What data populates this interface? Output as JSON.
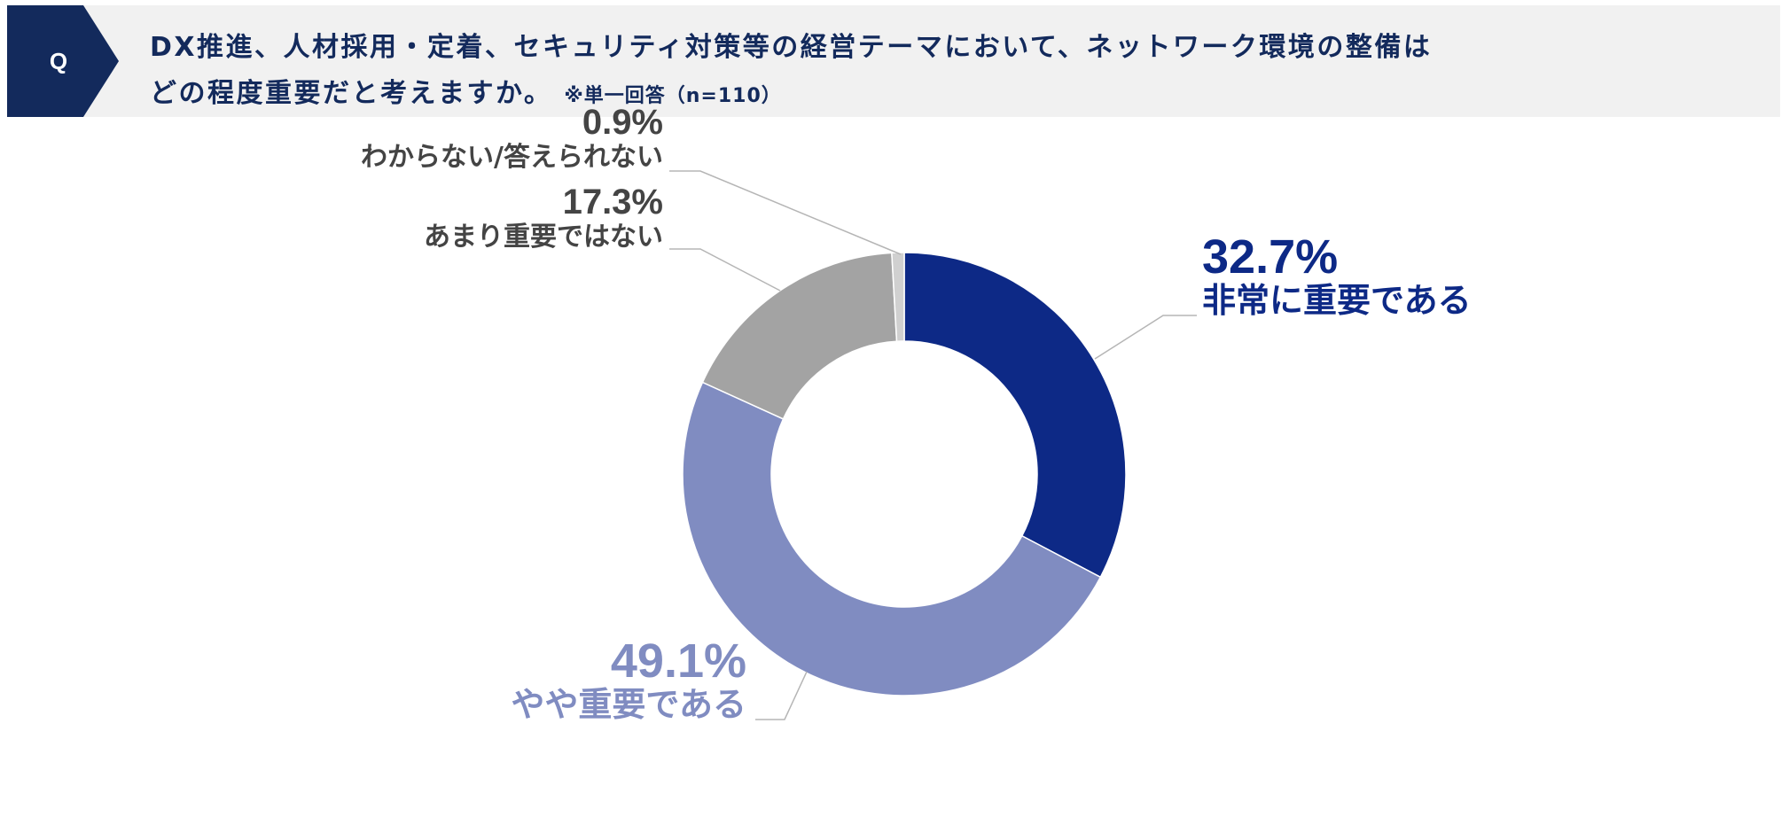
{
  "header": {
    "badge": "Q",
    "question_line1": "DX推進、人材採用・定着、セキュリティ対策等の経営テーマにおいて、ネットワーク環境の整備は",
    "question_line2": "どの程度重要だと考えますか。",
    "note": "※単一回答（n=110）",
    "badge_color": "#132a5c"
  },
  "chart_data": {
    "type": "pie",
    "title": "",
    "slices": [
      {
        "label": "非常に重要である",
        "value": 32.7,
        "value_label": "32.7%",
        "color": "#0d2986",
        "label_color": "#0d2986"
      },
      {
        "label": "やや重要である",
        "value": 49.1,
        "value_label": "49.1%",
        "color": "#808cc1",
        "label_color": "#808cc1"
      },
      {
        "label": "あまり重要ではない",
        "value": 17.3,
        "value_label": "17.3%",
        "color": "#a3a3a3",
        "label_color": "#444444"
      },
      {
        "label": "わからない/答えられない",
        "value": 0.9,
        "value_label": "0.9%",
        "color": "#d0d0d0",
        "label_color": "#444444"
      }
    ],
    "hole": true,
    "legend": "none"
  }
}
